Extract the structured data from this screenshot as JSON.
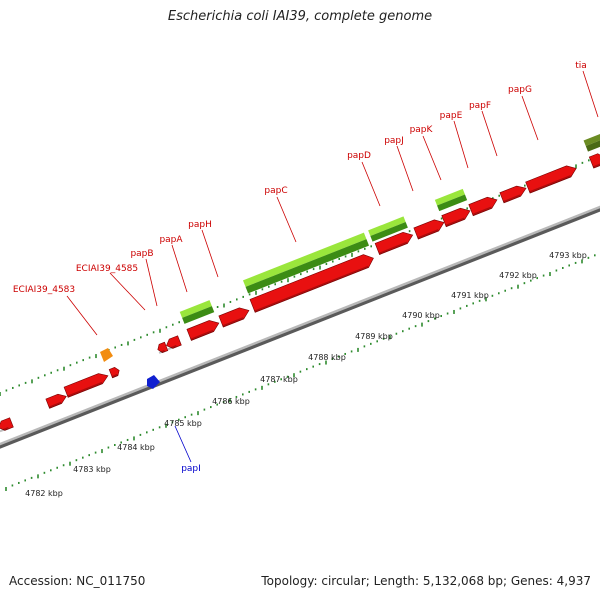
{
  "title": "Escherichia coli IAI39, complete genome",
  "footer": {
    "accession": "Accession: NC_011750",
    "topology": "Topology: circular; Length: 5,132,068 bp; Genes: 4,937"
  },
  "colors": {
    "backbone": "#8a8a8a",
    "tick": "#2e8b2e",
    "gene_label": "#cc0000",
    "papI_label": "#0000cc",
    "forward_gene": "#e81010",
    "reverse_gene": "#e81010",
    "rrna_light": "#9ae63c",
    "rrna_dark": "#3c8c14",
    "olive": "#6b8c23",
    "orange": "#f28c10",
    "blue": "#1020d0"
  },
  "kbp_labels": [
    "4782 kbp",
    "4783 kbp",
    "4784 kbp",
    "4785 kbp",
    "4786 kbp",
    "4787 kbp",
    "4788 kbp",
    "4789 kbp",
    "4790 kbp",
    "4791 kbp",
    "4792 kbp",
    "4793 kbp"
  ],
  "gene_labels": [
    "ECIAI39_4583",
    "ECIAI39_4585",
    "papB",
    "papA",
    "papH",
    "papC",
    "papD",
    "papJ",
    "papK",
    "papE",
    "papF",
    "papG",
    "tia",
    "papI"
  ]
}
